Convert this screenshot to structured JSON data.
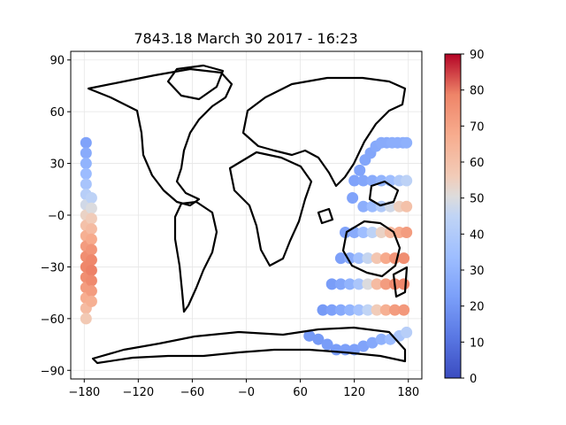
{
  "chart_data": {
    "type": "scatter",
    "title": "7843.18 March 30 2017 - 16:23",
    "xlabel": "",
    "ylabel": "",
    "xlim": [
      -195,
      195
    ],
    "ylim": [
      -95,
      95
    ],
    "x_ticks": [
      -180,
      -120,
      -60,
      0,
      60,
      120,
      180
    ],
    "x_tick_labels": [
      "−180",
      "−120",
      "−60",
      "−0",
      "60",
      "120",
      "180"
    ],
    "y_ticks": [
      90,
      60,
      30,
      0,
      -30,
      -60,
      -90
    ],
    "y_tick_labels": [
      "90",
      "60",
      "30",
      "−0",
      "−30",
      "−60",
      "−90"
    ],
    "grid": true,
    "colormap": "coolwarm",
    "colorbar": {
      "vmin": 0,
      "vmax": 90,
      "ticks": [
        0,
        10,
        20,
        30,
        40,
        50,
        60,
        70,
        80,
        90
      ],
      "tick_labels": [
        "0",
        "10",
        "20",
        "30",
        "40",
        "50",
        "60",
        "70",
        "80",
        "90"
      ]
    },
    "series": [
      {
        "points": [
          {
            "x": -178,
            "y": 42,
            "v": 24
          },
          {
            "x": -178,
            "y": 36,
            "v": 27
          },
          {
            "x": -178,
            "y": 30,
            "v": 30
          },
          {
            "x": -178,
            "y": 24,
            "v": 33
          },
          {
            "x": -178,
            "y": 18,
            "v": 37
          },
          {
            "x": -178,
            "y": 12,
            "v": 42
          },
          {
            "x": -178,
            "y": 6,
            "v": 48
          },
          {
            "x": -178,
            "y": 0,
            "v": 54
          },
          {
            "x": -178,
            "y": -6,
            "v": 60
          },
          {
            "x": -178,
            "y": -12,
            "v": 66
          },
          {
            "x": -178,
            "y": -18,
            "v": 72
          },
          {
            "x": -178,
            "y": -24,
            "v": 76
          },
          {
            "x": -178,
            "y": -30,
            "v": 78
          },
          {
            "x": -178,
            "y": -36,
            "v": 76
          },
          {
            "x": -178,
            "y": -42,
            "v": 72
          },
          {
            "x": -178,
            "y": -48,
            "v": 67
          },
          {
            "x": -178,
            "y": -54,
            "v": 62
          },
          {
            "x": -178,
            "y": -60,
            "v": 57
          },
          {
            "x": -172,
            "y": 10,
            "v": 44
          },
          {
            "x": -172,
            "y": 4,
            "v": 50
          },
          {
            "x": -172,
            "y": -2,
            "v": 56
          },
          {
            "x": -172,
            "y": -8,
            "v": 62
          },
          {
            "x": -172,
            "y": -14,
            "v": 68
          },
          {
            "x": -172,
            "y": -20,
            "v": 74
          },
          {
            "x": -172,
            "y": -26,
            "v": 78
          },
          {
            "x": -172,
            "y": -32,
            "v": 79
          },
          {
            "x": -172,
            "y": -38,
            "v": 77
          },
          {
            "x": -172,
            "y": -44,
            "v": 72
          },
          {
            "x": -172,
            "y": -50,
            "v": 66
          },
          {
            "x": 120,
            "y": 20,
            "v": 24
          },
          {
            "x": 126,
            "y": 26,
            "v": 24
          },
          {
            "x": 132,
            "y": 32,
            "v": 25
          },
          {
            "x": 138,
            "y": 36,
            "v": 25
          },
          {
            "x": 144,
            "y": 40,
            "v": 26
          },
          {
            "x": 150,
            "y": 42,
            "v": 27
          },
          {
            "x": 156,
            "y": 42,
            "v": 27
          },
          {
            "x": 162,
            "y": 42,
            "v": 28
          },
          {
            "x": 168,
            "y": 42,
            "v": 28
          },
          {
            "x": 174,
            "y": 42,
            "v": 28
          },
          {
            "x": 178,
            "y": 42,
            "v": 29
          },
          {
            "x": 130,
            "y": 20,
            "v": 25
          },
          {
            "x": 140,
            "y": 20,
            "v": 27
          },
          {
            "x": 150,
            "y": 20,
            "v": 30
          },
          {
            "x": 160,
            "y": 20,
            "v": 34
          },
          {
            "x": 170,
            "y": 20,
            "v": 40
          },
          {
            "x": 178,
            "y": 20,
            "v": 44
          },
          {
            "x": 118,
            "y": 10,
            "v": 24
          },
          {
            "x": 130,
            "y": 5,
            "v": 28
          },
          {
            "x": 140,
            "y": 5,
            "v": 33
          },
          {
            "x": 150,
            "y": 5,
            "v": 40
          },
          {
            "x": 160,
            "y": 5,
            "v": 48
          },
          {
            "x": 170,
            "y": 5,
            "v": 55
          },
          {
            "x": 178,
            "y": 5,
            "v": 60
          },
          {
            "x": 110,
            "y": -10,
            "v": 24
          },
          {
            "x": 120,
            "y": -10,
            "v": 27
          },
          {
            "x": 130,
            "y": -10,
            "v": 34
          },
          {
            "x": 140,
            "y": -10,
            "v": 44
          },
          {
            "x": 150,
            "y": -10,
            "v": 54
          },
          {
            "x": 160,
            "y": -10,
            "v": 62
          },
          {
            "x": 170,
            "y": -10,
            "v": 68
          },
          {
            "x": 178,
            "y": -10,
            "v": 72
          },
          {
            "x": 105,
            "y": -25,
            "v": 23
          },
          {
            "x": 115,
            "y": -25,
            "v": 27
          },
          {
            "x": 125,
            "y": -25,
            "v": 35
          },
          {
            "x": 135,
            "y": -25,
            "v": 46
          },
          {
            "x": 145,
            "y": -25,
            "v": 58
          },
          {
            "x": 155,
            "y": -25,
            "v": 68
          },
          {
            "x": 165,
            "y": -25,
            "v": 74
          },
          {
            "x": 175,
            "y": -25,
            "v": 76
          },
          {
            "x": 95,
            "y": -40,
            "v": 22
          },
          {
            "x": 105,
            "y": -40,
            "v": 25
          },
          {
            "x": 115,
            "y": -40,
            "v": 30
          },
          {
            "x": 125,
            "y": -40,
            "v": 38
          },
          {
            "x": 135,
            "y": -40,
            "v": 50
          },
          {
            "x": 145,
            "y": -40,
            "v": 62
          },
          {
            "x": 155,
            "y": -40,
            "v": 72
          },
          {
            "x": 165,
            "y": -40,
            "v": 77
          },
          {
            "x": 175,
            "y": -40,
            "v": 78
          },
          {
            "x": 85,
            "y": -55,
            "v": 21
          },
          {
            "x": 95,
            "y": -55,
            "v": 23
          },
          {
            "x": 105,
            "y": -55,
            "v": 26
          },
          {
            "x": 115,
            "y": -55,
            "v": 30
          },
          {
            "x": 125,
            "y": -55,
            "v": 36
          },
          {
            "x": 135,
            "y": -55,
            "v": 45
          },
          {
            "x": 145,
            "y": -55,
            "v": 56
          },
          {
            "x": 155,
            "y": -55,
            "v": 66
          },
          {
            "x": 165,
            "y": -55,
            "v": 72
          },
          {
            "x": 175,
            "y": -55,
            "v": 73
          },
          {
            "x": 70,
            "y": -70,
            "v": 21
          },
          {
            "x": 80,
            "y": -72,
            "v": 21
          },
          {
            "x": 90,
            "y": -75,
            "v": 22
          },
          {
            "x": 100,
            "y": -78,
            "v": 22
          },
          {
            "x": 110,
            "y": -78,
            "v": 23
          },
          {
            "x": 120,
            "y": -78,
            "v": 23
          },
          {
            "x": 130,
            "y": -76,
            "v": 24
          },
          {
            "x": 140,
            "y": -74,
            "v": 26
          },
          {
            "x": 150,
            "y": -72,
            "v": 29
          },
          {
            "x": 160,
            "y": -72,
            "v": 33
          },
          {
            "x": 170,
            "y": -70,
            "v": 38
          },
          {
            "x": 178,
            "y": -68,
            "v": 42
          }
        ]
      }
    ]
  }
}
